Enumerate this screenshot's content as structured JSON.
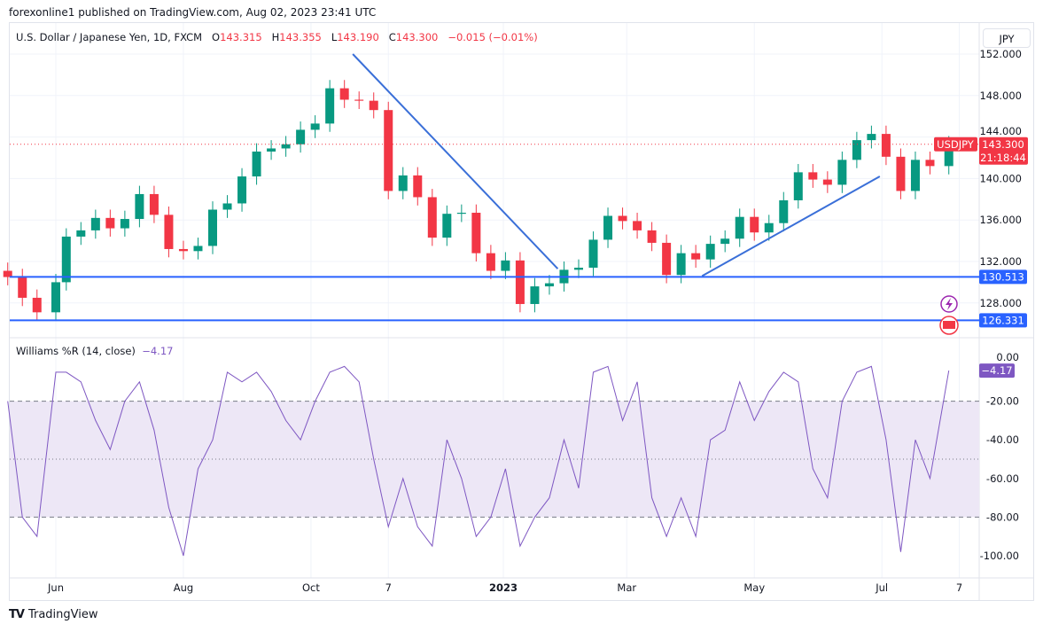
{
  "header": {
    "published": "forexonline1 published on TradingView.com, Aug 02, 2023 23:41 UTC"
  },
  "legend": {
    "symbol": "U.S. Dollar / Japanese Yen, 1D, FXCM",
    "o_label": "O",
    "o": "143.315",
    "h_label": "H",
    "h": "143.355",
    "l_label": "L",
    "l": "143.190",
    "c_label": "C",
    "c": "143.300",
    "change": "−0.015 (−0.01%)"
  },
  "currency_button": "JPY",
  "brand": "TradingView",
  "colors": {
    "up": "#089981",
    "down": "#f23645",
    "lines": "#2962ff",
    "trend": "#3a6fd8",
    "wr": "#7e57c2",
    "wr_fill": "#ede7f6"
  },
  "chart_data": [
    {
      "type": "candlestick",
      "title": "U.S. Dollar / Japanese Yen, 1D, FXCM",
      "ylim": [
        124,
        153
      ],
      "y_ticks": [
        "152.000",
        "148.000",
        "144.000",
        "140.000",
        "136.000",
        "132.000",
        "128.000"
      ],
      "x_ticks": [
        {
          "date": "2022-06-01",
          "label": "Jun"
        },
        {
          "date": "2022-08-01",
          "label": "Aug"
        },
        {
          "date": "2022-10-01",
          "label": "Oct"
        },
        {
          "date": "2022-11-07",
          "label": "7"
        },
        {
          "date": "2023-01-01",
          "label": "2023"
        },
        {
          "date": "2023-03-01",
          "label": "Mar"
        },
        {
          "date": "2023-05-01",
          "label": "May"
        },
        {
          "date": "2023-07-01",
          "label": "Jul"
        },
        {
          "date": "2023-08-07",
          "label": "7"
        }
      ],
      "grid": true,
      "last_price": {
        "symbol": "USDJPY",
        "value": "143.300",
        "countdown": "21:18:44"
      },
      "horizontal_lines": [
        {
          "value": 130.513,
          "label": "130.513"
        },
        {
          "value": 126.331,
          "label": "126.331"
        }
      ],
      "trend_lines": [
        {
          "from": {
            "date": "2022-10-21",
            "price": 152.0
          },
          "to": {
            "date": "2023-01-27",
            "price": 131.3
          }
        },
        {
          "from": {
            "date": "2023-04-06",
            "price": 130.6
          },
          "to": {
            "date": "2023-06-30",
            "price": 140.2
          }
        }
      ],
      "dates": [
        "2022-05-09",
        "2022-05-16",
        "2022-05-23",
        "2022-06-01",
        "2022-06-06",
        "2022-06-13",
        "2022-06-20",
        "2022-06-27",
        "2022-07-04",
        "2022-07-11",
        "2022-07-18",
        "2022-07-25",
        "2022-08-01",
        "2022-08-08",
        "2022-08-15",
        "2022-08-22",
        "2022-08-29",
        "2022-09-05",
        "2022-09-12",
        "2022-09-19",
        "2022-09-26",
        "2022-10-03",
        "2022-10-10",
        "2022-10-17",
        "2022-10-24",
        "2022-10-31",
        "2022-11-07",
        "2022-11-14",
        "2022-11-21",
        "2022-11-28",
        "2022-12-05",
        "2022-12-12",
        "2022-12-19",
        "2022-12-26",
        "2023-01-02",
        "2023-01-09",
        "2023-01-16",
        "2023-01-23",
        "2023-01-30",
        "2023-02-06",
        "2023-02-13",
        "2023-02-20",
        "2023-02-27",
        "2023-03-06",
        "2023-03-13",
        "2023-03-20",
        "2023-03-27",
        "2023-04-03",
        "2023-04-10",
        "2023-04-17",
        "2023-04-24",
        "2023-05-01",
        "2023-05-08",
        "2023-05-15",
        "2023-05-22",
        "2023-05-29",
        "2023-06-05",
        "2023-06-12",
        "2023-06-19",
        "2023-06-26",
        "2023-07-03",
        "2023-07-10",
        "2023-07-17",
        "2023-07-24",
        "2023-08-02"
      ],
      "close": [
        130.5,
        128.5,
        127.1,
        130.0,
        134.4,
        135.0,
        136.2,
        135.2,
        136.1,
        138.5,
        136.5,
        133.2,
        133.0,
        133.5,
        137.0,
        137.6,
        140.2,
        142.6,
        142.9,
        143.3,
        144.7,
        145.3,
        148.7,
        147.6,
        147.5,
        146.6,
        138.8,
        140.3,
        138.2,
        134.3,
        136.6,
        136.7,
        132.8,
        131.1,
        132.1,
        127.9,
        129.6,
        129.9,
        131.2,
        131.4,
        134.1,
        136.4,
        135.9,
        135.0,
        133.8,
        130.7,
        132.8,
        132.2,
        133.7,
        134.2,
        136.3,
        134.8,
        135.7,
        137.9,
        140.6,
        139.9,
        139.4,
        141.8,
        143.7,
        144.3,
        142.1,
        138.8,
        141.8,
        141.2,
        143.3
      ]
    },
    {
      "type": "line",
      "title": "Williams %R (14, close)",
      "current": "−4.17",
      "ylim": [
        -105,
        3
      ],
      "y_ticks": [
        "0.00",
        "-20.00",
        "-40.00",
        "-60.00",
        "-80.00",
        "-100.00"
      ],
      "bands": {
        "upper": -20,
        "middle": -50,
        "lower": -80
      },
      "values": [
        -20,
        -80,
        -90,
        -5,
        -5,
        -10,
        -30,
        -45,
        -20,
        -10,
        -35,
        -75,
        -100,
        -55,
        -40,
        -5,
        -10,
        -5,
        -15,
        -30,
        -40,
        -20,
        -5,
        -2,
        -10,
        -50,
        -85,
        -60,
        -85,
        -95,
        -40,
        -60,
        -90,
        -80,
        -55,
        -95,
        -80,
        -70,
        -40,
        -65,
        -5,
        -2,
        -30,
        -10,
        -70,
        -90,
        -70,
        -90,
        -40,
        -35,
        -10,
        -30,
        -15,
        -5,
        -10,
        -55,
        -70,
        -20,
        -5,
        -2,
        -40,
        -98,
        -40,
        -60,
        -4.17
      ]
    }
  ]
}
